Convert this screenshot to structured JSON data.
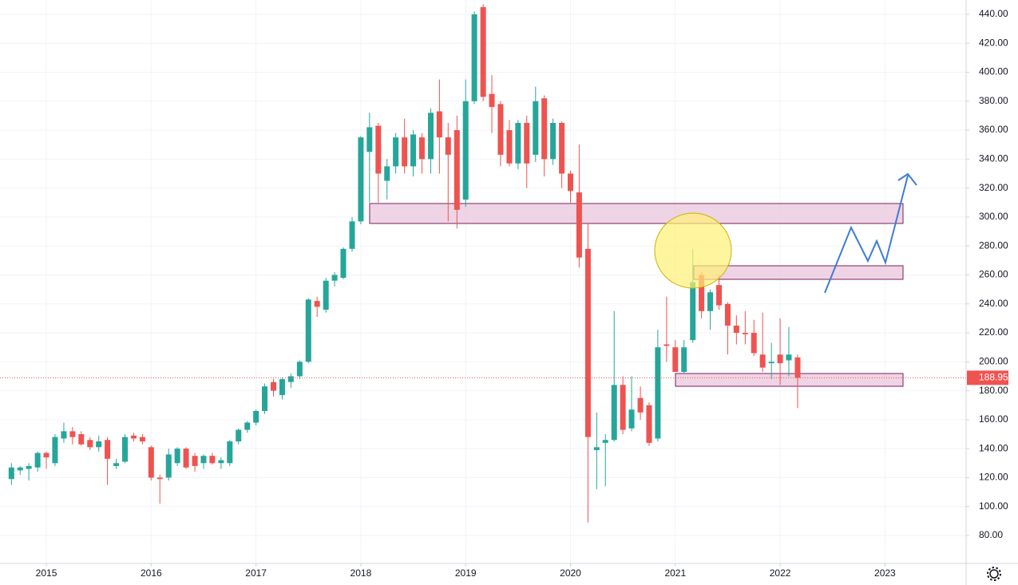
{
  "chart_data": {
    "type": "candlestick",
    "up_color": "#26a69a",
    "down_color": "#ef5350",
    "grid": true,
    "xlim": [
      2014.558,
      2023.774
    ],
    "ylim": [
      60.7,
      449.9
    ],
    "xticks": [
      2015,
      2016,
      2017,
      2018,
      2019,
      2020,
      2021,
      2022,
      2023
    ],
    "yticks": [
      {
        "value": 80,
        "label": "80.00"
      },
      {
        "value": 100,
        "label": "100.00"
      },
      {
        "value": 120,
        "label": "120.00"
      },
      {
        "value": 140,
        "label": "140.00"
      },
      {
        "value": 160,
        "label": "160.00"
      },
      {
        "value": 180,
        "label": "180.00"
      },
      {
        "value": 200,
        "label": "200.00"
      },
      {
        "value": 220,
        "label": "220.00"
      },
      {
        "value": 240,
        "label": "240.00"
      },
      {
        "value": 260,
        "label": "260.00"
      },
      {
        "value": 280,
        "label": "280.00"
      },
      {
        "value": 300,
        "label": "300.00"
      },
      {
        "value": 320,
        "label": "320.00"
      },
      {
        "value": 340,
        "label": "340.00"
      },
      {
        "value": 360,
        "label": "360.00"
      },
      {
        "value": 380,
        "label": "380.00"
      },
      {
        "value": 400,
        "label": "400.00"
      },
      {
        "value": 420,
        "label": "420.00"
      },
      {
        "value": 440,
        "label": "440.00"
      }
    ],
    "x": [
      2014.667,
      2014.75,
      2014.833,
      2014.917,
      2015,
      2015.083,
      2015.167,
      2015.25,
      2015.333,
      2015.417,
      2015.5,
      2015.583,
      2015.667,
      2015.75,
      2015.833,
      2015.917,
      2016,
      2016.083,
      2016.167,
      2016.25,
      2016.333,
      2016.417,
      2016.5,
      2016.583,
      2016.667,
      2016.75,
      2016.833,
      2016.917,
      2017,
      2017.083,
      2017.167,
      2017.25,
      2017.333,
      2017.417,
      2017.5,
      2017.583,
      2017.667,
      2017.75,
      2017.833,
      2017.917,
      2018,
      2018.083,
      2018.167,
      2018.25,
      2018.333,
      2018.417,
      2018.5,
      2018.583,
      2018.667,
      2018.75,
      2018.833,
      2018.917,
      2019,
      2019.083,
      2019.167,
      2019.25,
      2019.333,
      2019.417,
      2019.5,
      2019.583,
      2019.667,
      2019.75,
      2019.833,
      2019.917,
      2020,
      2020.083,
      2020.167,
      2020.25,
      2020.333,
      2020.417,
      2020.5,
      2020.583,
      2020.667,
      2020.75,
      2020.833,
      2020.917,
      2021,
      2021.083,
      2021.167,
      2021.25,
      2021.333,
      2021.417,
      2021.5,
      2021.583,
      2021.667,
      2021.75,
      2021.833,
      2021.917,
      2022,
      2022.083,
      2022.167
    ],
    "open": [
      119,
      125,
      126,
      127,
      137,
      130,
      147,
      152,
      150,
      146,
      141,
      146,
      128,
      131,
      149,
      148,
      141,
      120,
      120,
      130,
      140,
      135,
      130,
      135,
      130,
      130,
      145,
      153,
      158,
      166,
      186,
      177,
      186,
      190,
      200,
      242,
      236,
      256,
      258,
      278,
      297,
      345,
      363,
      325,
      335,
      355,
      335,
      355,
      340,
      373,
      355,
      360,
      312,
      380,
      445,
      385,
      378,
      360,
      337,
      365,
      343,
      382,
      340,
      365,
      330,
      317,
      278,
      139,
      144,
      146,
      184,
      154,
      175,
      170,
      147,
      212,
      210,
      193,
      215,
      260,
      235,
      253,
      240,
      225,
      220,
      220,
      205,
      199,
      205,
      201,
      203
    ],
    "high": [
      130,
      128,
      130,
      138,
      138,
      150,
      158,
      155,
      152,
      148,
      149,
      148,
      133,
      150,
      151,
      150,
      142,
      122,
      140,
      141,
      141,
      137,
      136,
      137,
      134,
      146,
      154,
      159,
      167,
      185,
      188,
      189,
      192,
      201,
      244,
      245,
      258,
      262,
      279,
      300,
      356,
      372,
      365,
      340,
      358,
      368,
      360,
      358,
      375,
      395,
      365,
      370,
      395,
      442,
      447,
      398,
      380,
      367,
      367,
      370,
      390,
      384,
      368,
      366,
      332,
      350,
      296,
      165,
      150,
      235,
      190,
      190,
      183,
      172,
      222,
      245,
      215,
      215,
      278,
      262,
      250,
      260,
      241,
      232,
      235,
      229,
      234,
      213,
      230,
      224,
      205
    ],
    "low": [
      115,
      122,
      118,
      124,
      126,
      128,
      144,
      143,
      142,
      139,
      138,
      115,
      126,
      130,
      145,
      143,
      118,
      102,
      118,
      128,
      126,
      124,
      126,
      129,
      126,
      128,
      143,
      151,
      156,
      164,
      176,
      174,
      182,
      188,
      199,
      231,
      234,
      252,
      257,
      276,
      295,
      310,
      310,
      312,
      330,
      330,
      328,
      330,
      330,
      330,
      297,
      292,
      307,
      378,
      380,
      358,
      335,
      335,
      333,
      320,
      338,
      328,
      336,
      320,
      310,
      265,
      89,
      112,
      114,
      145,
      150,
      152,
      160,
      142,
      145,
      200,
      193,
      192,
      213,
      230,
      222,
      236,
      205,
      212,
      212,
      204,
      193,
      188,
      184,
      190,
      168
    ],
    "close": [
      127,
      127,
      128,
      137,
      134,
      148,
      152,
      148,
      143,
      141,
      145,
      133,
      130,
      148,
      147,
      145,
      120,
      119,
      136,
      140,
      127,
      128,
      135,
      130,
      132,
      145,
      153,
      158,
      166,
      183,
      180,
      188,
      190,
      200,
      243,
      238,
      256,
      260,
      278,
      297,
      355,
      362,
      330,
      335,
      355,
      335,
      357,
      340,
      372,
      355,
      343,
      305,
      380,
      440,
      383,
      376,
      343,
      337,
      365,
      337,
      380,
      340,
      365,
      330,
      318,
      272,
      148,
      141,
      146,
      184,
      153,
      167,
      165,
      144,
      210,
      211,
      193,
      210,
      255,
      235,
      248,
      239,
      225,
      220,
      219,
      206,
      196,
      200,
      199,
      205,
      188.95
    ]
  }
}
